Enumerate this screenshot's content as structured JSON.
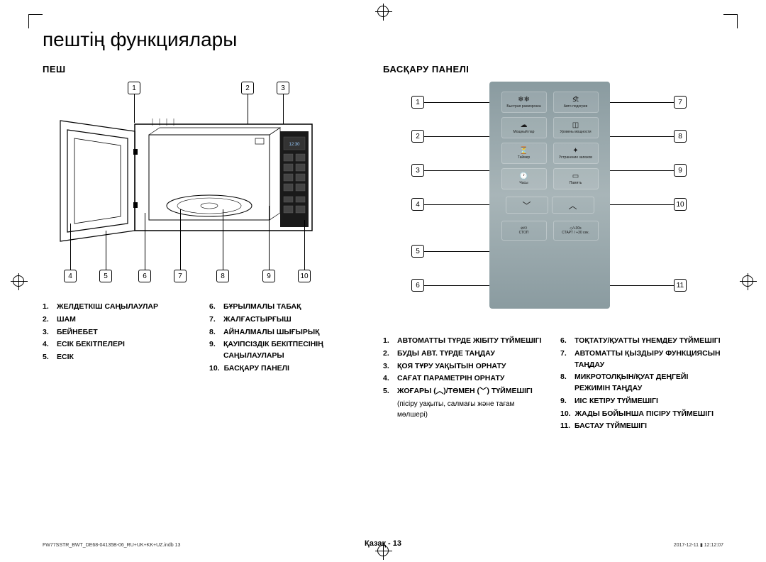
{
  "title": "пештің функциялары",
  "section_oven": "ПЕШ",
  "section_panel": "БАСҚАРУ ПАНЕЛІ",
  "oven_callouts_top": [
    "1",
    "2",
    "3"
  ],
  "oven_callouts_bot": [
    "4",
    "5",
    "6",
    "7",
    "8",
    "9",
    "10"
  ],
  "oven_legend_left": [
    {
      "n": "1.",
      "t": "ЖЕЛДЕТКІШ САҢЫЛАУЛАР"
    },
    {
      "n": "2.",
      "t": "ШАМ"
    },
    {
      "n": "3.",
      "t": "БЕЙНЕБЕТ"
    },
    {
      "n": "4.",
      "t": "ЕСІК БЕКІТПЕЛЕРІ"
    },
    {
      "n": "5.",
      "t": "ЕСІК"
    }
  ],
  "oven_legend_right": [
    {
      "n": "6.",
      "t": "БҰРЫЛМАЛЫ ТАБАҚ"
    },
    {
      "n": "7.",
      "t": "ЖАЛҒАСТЫРҒЫШ"
    },
    {
      "n": "8.",
      "t": "АЙНАЛМАЛЫ ШЫҒЫРЫҚ"
    },
    {
      "n": "9.",
      "t": "ҚАУІПСІЗДІК БЕКІТПЕСІНІҢ САҢЫЛАУЛАРЫ"
    },
    {
      "n": "10.",
      "t": "БАСҚАРУ ПАНЕЛІ"
    }
  ],
  "panel_callouts_left": [
    "1",
    "2",
    "3",
    "4",
    "5",
    "6"
  ],
  "panel_callouts_right": [
    "7",
    "8",
    "9",
    "10",
    "11"
  ],
  "panel_buttons": [
    [
      {
        "ico": "❄❄",
        "lbl": "Быстрая разморозка"
      },
      {
        "ico": "ﬆ",
        "lbl": "Авто подогрев"
      }
    ],
    [
      {
        "ico": "☁",
        "lbl": "Мощный пар"
      },
      {
        "ico": "◫",
        "lbl": "Уровень мощности"
      }
    ],
    [
      {
        "ico": "⏳",
        "lbl": "Таймер"
      },
      {
        "ico": "✦",
        "lbl": "Устранение запахов"
      }
    ],
    [
      {
        "ico": "🕐",
        "lbl": "Часы"
      },
      {
        "ico": "▭",
        "lbl": "Память"
      }
    ]
  ],
  "panel_stop": "СТОП",
  "panel_stop_ico": "⊘/⏻",
  "panel_start": "СТАРТ / +30 сек.",
  "panel_start_ico": "◇/+30s",
  "panel_legend_left": [
    {
      "n": "1.",
      "t": "АВТОМАТТЫ ТҮРДЕ ЖІБІТУ ТҮЙМЕШІГІ"
    },
    {
      "n": "2.",
      "t": "БУДЫ АВТ. ТҮРДЕ ТАҢДАУ"
    },
    {
      "n": "3.",
      "t": "ҚОЯ ТҰРУ УАҚЫТЫН ОРНАТУ"
    },
    {
      "n": "4.",
      "t": "САҒАТ ПАРАМЕТРІН ОРНАТУ"
    },
    {
      "n": "5.",
      "t": "ЖОҒАРЫ (︿)/ТӨМЕН (﹀) ТҮЙМЕШІГІ",
      "sub": "(пісіру уақыты, салмағы және тағам мөлшері)"
    }
  ],
  "panel_legend_right": [
    {
      "n": "6.",
      "t": "ТОҚТАТУ/ҚУАТТЫ ҮНЕМДЕУ ТҮЙМЕШІГІ"
    },
    {
      "n": "7.",
      "t": "АВТОМАТТЫ ҚЫЗДЫРУ ФУНКЦИЯСЫН ТАҢДАУ"
    },
    {
      "n": "8.",
      "t": "МИКРОТОЛҚЫН/ҚУАТ ДЕҢГЕЙІ РЕЖИМІН ТАҢДАУ"
    },
    {
      "n": "9.",
      "t": "ИІС КЕТІРУ ТҮЙМЕШІГІ"
    },
    {
      "n": "10.",
      "t": "ЖАДЫ БОЙЫНША ПІСІРУ ТҮЙМЕШІГІ"
    },
    {
      "n": "11.",
      "t": "БАСТАУ ТҮЙМЕШІГІ"
    }
  ],
  "page_footer": "Қазақ - 13",
  "footer_left": "FW77SSTR_BWT_DE68-04135B-06_RU+UK+KK+UZ.indb   13",
  "footer_right": "2017-12-11   ▮ 12:12:07",
  "colors": {
    "panel_bg": "#8a9ba0"
  }
}
